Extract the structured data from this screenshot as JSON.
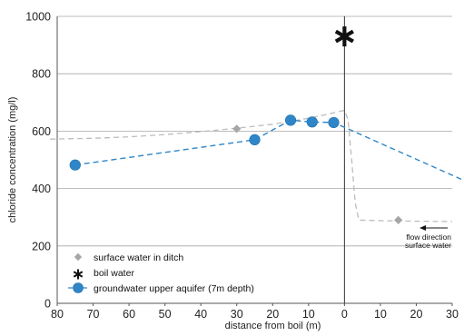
{
  "chart_data": {
    "type": "line",
    "xlabel": "distance from boil (m)",
    "ylabel": "chloride concentration (mg/l)",
    "xlim": [
      80,
      -30
    ],
    "ylim": [
      0,
      1000
    ],
    "x_ticks": [
      80,
      70,
      60,
      50,
      40,
      30,
      20,
      10,
      0,
      -10,
      -20,
      -30
    ],
    "x_tick_labels": [
      "80",
      "70",
      "60",
      "50",
      "40",
      "30",
      "20",
      "10",
      "0",
      "10",
      "20",
      "30"
    ],
    "y_ticks": [
      0,
      200,
      400,
      600,
      800,
      1000
    ],
    "grid": "horizontal",
    "legend_position": "bottom-left",
    "series": [
      {
        "name": "surface water in ditch",
        "marker": "diamond",
        "color": "#a6a6a6",
        "x": [
          30,
          -15
        ],
        "y": [
          608,
          290
        ]
      },
      {
        "name": "boil water",
        "marker": "asterisk",
        "color": "#111111",
        "x": [
          0
        ],
        "y": [
          930
        ]
      },
      {
        "name": "groundwater upper aquifer (7m depth)",
        "marker": "circle",
        "color": "#2e86c8",
        "line": "dashed",
        "x": [
          75,
          25,
          15,
          9,
          3,
          -36
        ],
        "y": [
          482,
          570,
          638,
          632,
          630,
          413
        ]
      }
    ],
    "reference_curve": {
      "color": "#bdbdbd",
      "line": "dashed",
      "x": [
        82,
        70,
        60,
        50,
        40,
        30,
        20,
        10,
        5,
        2,
        1,
        0,
        -1,
        -2,
        -3,
        -4,
        -10,
        -20,
        -30
      ],
      "y": [
        572,
        575,
        580,
        588,
        598,
        610,
        624,
        645,
        658,
        667,
        670,
        672,
        640,
        500,
        350,
        290,
        288,
        286,
        285
      ]
    },
    "boil_line_x": 0,
    "annotation": {
      "lines": [
        "flow direction",
        "surface water"
      ],
      "arrow": "left"
    }
  }
}
